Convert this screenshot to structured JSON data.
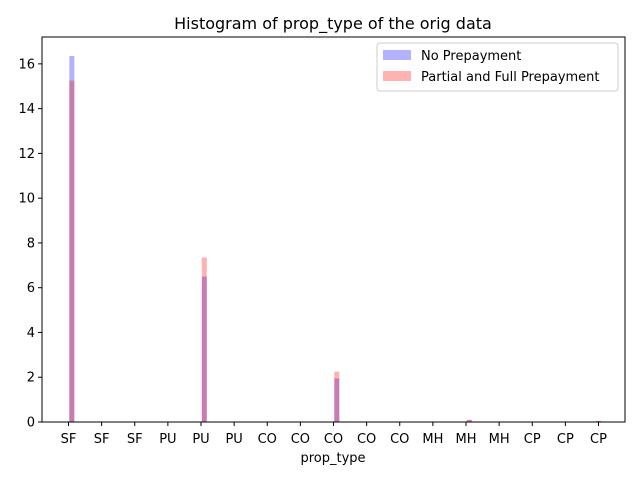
{
  "chart_data": {
    "type": "bar",
    "title": "Histogram of prop_type of the orig data",
    "xlabel": "prop_type",
    "ylabel": "",
    "categories": [
      "SF",
      "SF",
      "SF",
      "PU",
      "PU",
      "PU",
      "CO",
      "CO",
      "CO",
      "CO",
      "CO",
      "MH",
      "MH",
      "MH",
      "CP",
      "CP",
      "CP"
    ],
    "ylim": [
      0,
      17.2
    ],
    "yticks": [
      0,
      2,
      4,
      6,
      8,
      10,
      12,
      14,
      16
    ],
    "legend_position": "top-right",
    "grid": false,
    "series": [
      {
        "name": "No Prepayment",
        "color": "#0000ff",
        "opacity": 0.3,
        "bars": [
          {
            "x": 0.1,
            "value": 16.35
          },
          {
            "x": 4.1,
            "value": 6.5
          },
          {
            "x": 8.1,
            "value": 1.95
          },
          {
            "x": 12.1,
            "value": 0.1
          },
          {
            "x": 16.0,
            "value": 0.04
          }
        ]
      },
      {
        "name": "Partial and Full Prepayment",
        "color": "#ff0000",
        "opacity": 0.3,
        "bars": [
          {
            "x": 0.1,
            "value": 15.25
          },
          {
            "x": 4.1,
            "value": 7.35
          },
          {
            "x": 8.1,
            "value": 2.25
          },
          {
            "x": 12.1,
            "value": 0.08
          },
          {
            "x": 16.0,
            "value": 0.05
          }
        ]
      }
    ]
  }
}
